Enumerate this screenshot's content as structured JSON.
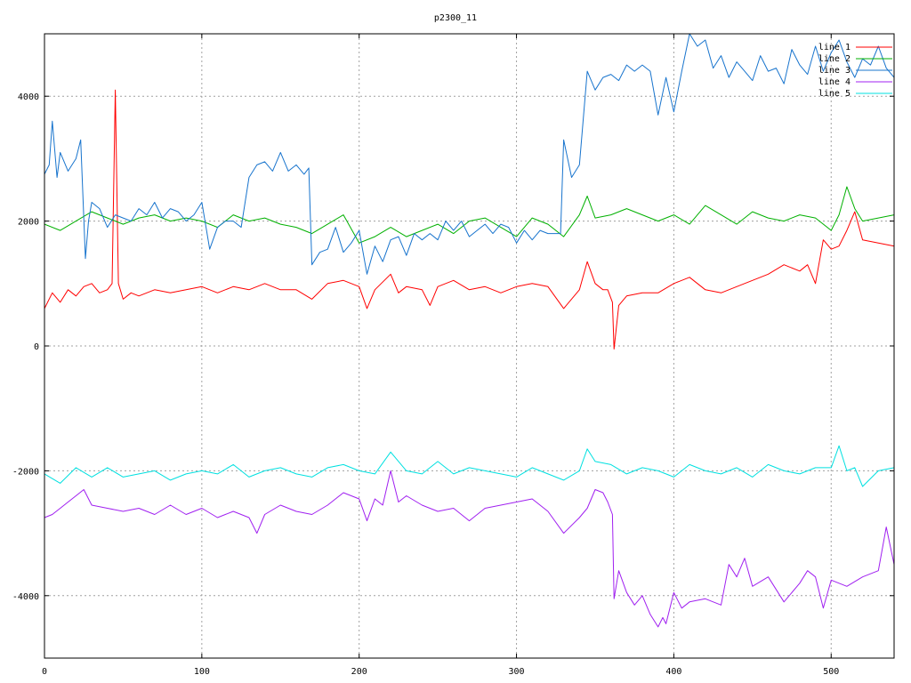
{
  "chart_data": {
    "type": "line",
    "title": "p2300_11",
    "xlabel": "",
    "ylabel": "",
    "xlim": [
      0,
      540
    ],
    "ylim": [
      -5000,
      5000
    ],
    "x_ticks": [
      0,
      100,
      200,
      300,
      400,
      500
    ],
    "y_ticks": [
      -4000,
      -2000,
      0,
      2000,
      4000
    ],
    "grid": true,
    "legend_position": "top-right",
    "series": [
      {
        "name": "line 1",
        "color": "#ff0000",
        "x": [
          0,
          5,
          10,
          15,
          20,
          25,
          30,
          35,
          40,
          43,
          45,
          47,
          50,
          55,
          60,
          70,
          80,
          90,
          100,
          110,
          120,
          130,
          140,
          150,
          160,
          170,
          180,
          190,
          200,
          205,
          210,
          220,
          225,
          230,
          240,
          245,
          250,
          260,
          270,
          280,
          290,
          300,
          310,
          320,
          330,
          340,
          345,
          350,
          355,
          358,
          361,
          362,
          365,
          370,
          380,
          390,
          400,
          410,
          420,
          430,
          440,
          450,
          460,
          470,
          480,
          485,
          490,
          495,
          500,
          505,
          510,
          515,
          520,
          530,
          540
        ],
        "y": [
          600,
          850,
          700,
          900,
          800,
          950,
          1000,
          850,
          900,
          1000,
          4100,
          1000,
          750,
          850,
          800,
          900,
          850,
          900,
          950,
          850,
          950,
          900,
          1000,
          900,
          900,
          750,
          1000,
          1050,
          950,
          600,
          900,
          1150,
          850,
          950,
          900,
          650,
          950,
          1050,
          900,
          950,
          850,
          950,
          1000,
          950,
          600,
          900,
          1350,
          1000,
          900,
          900,
          700,
          -50,
          650,
          800,
          850,
          850,
          1000,
          1100,
          900,
          850,
          950,
          1050,
          1150,
          1300,
          1200,
          1300,
          1000,
          1700,
          1550,
          1600,
          1850,
          2150,
          1700,
          1650,
          1600
        ]
      },
      {
        "name": "line 2",
        "color": "#00b000",
        "x": [
          0,
          10,
          20,
          30,
          40,
          50,
          60,
          70,
          80,
          90,
          100,
          110,
          120,
          130,
          140,
          150,
          160,
          170,
          180,
          190,
          200,
          210,
          220,
          230,
          240,
          250,
          260,
          270,
          280,
          290,
          300,
          310,
          320,
          330,
          340,
          345,
          350,
          360,
          370,
          380,
          390,
          400,
          410,
          420,
          430,
          440,
          450,
          460,
          470,
          480,
          490,
          500,
          505,
          510,
          515,
          520,
          530,
          540
        ],
        "y": [
          1950,
          1850,
          2000,
          2150,
          2050,
          1950,
          2050,
          2100,
          2000,
          2050,
          2000,
          1900,
          2100,
          2000,
          2050,
          1950,
          1900,
          1800,
          1950,
          2100,
          1650,
          1750,
          1900,
          1750,
          1850,
          1950,
          1800,
          2000,
          2050,
          1900,
          1750,
          2050,
          1950,
          1750,
          2100,
          2400,
          2050,
          2100,
          2200,
          2100,
          2000,
          2100,
          1950,
          2250,
          2100,
          1950,
          2150,
          2050,
          2000,
          2100,
          2050,
          1850,
          2100,
          2550,
          2200,
          2000,
          2050,
          2100
        ]
      },
      {
        "name": "line 3",
        "color": "#1874cd",
        "x": [
          0,
          3,
          5,
          8,
          10,
          15,
          20,
          23,
          26,
          28,
          30,
          35,
          40,
          45,
          50,
          55,
          60,
          65,
          70,
          75,
          80,
          85,
          90,
          95,
          100,
          105,
          110,
          115,
          120,
          125,
          130,
          135,
          140,
          145,
          150,
          155,
          160,
          165,
          168,
          170,
          175,
          180,
          185,
          190,
          195,
          200,
          205,
          210,
          215,
          220,
          225,
          230,
          235,
          240,
          245,
          250,
          255,
          260,
          265,
          270,
          275,
          280,
          285,
          290,
          295,
          300,
          305,
          310,
          315,
          320,
          325,
          328,
          330,
          335,
          340,
          345,
          350,
          355,
          360,
          365,
          370,
          375,
          380,
          385,
          390,
          395,
          400,
          405,
          410,
          415,
          420,
          425,
          430,
          435,
          440,
          445,
          450,
          455,
          460,
          465,
          470,
          475,
          480,
          485,
          490,
          495,
          500,
          505,
          510,
          515,
          520,
          525,
          530,
          535,
          540
        ],
        "y": [
          2750,
          2900,
          3600,
          2700,
          3100,
          2800,
          3000,
          3300,
          1400,
          2000,
          2300,
          2200,
          1900,
          2100,
          2050,
          2000,
          2200,
          2100,
          2300,
          2050,
          2200,
          2150,
          2000,
          2100,
          2300,
          1550,
          1900,
          2000,
          2000,
          1900,
          2700,
          2900,
          2950,
          2800,
          3100,
          2800,
          2900,
          2750,
          2850,
          1300,
          1500,
          1550,
          1900,
          1500,
          1650,
          1850,
          1150,
          1600,
          1350,
          1700,
          1750,
          1450,
          1800,
          1700,
          1800,
          1700,
          2000,
          1850,
          2000,
          1750,
          1850,
          1950,
          1800,
          1950,
          1900,
          1650,
          1850,
          1700,
          1850,
          1800,
          1800,
          1800,
          3300,
          2700,
          2900,
          4400,
          4100,
          4300,
          4350,
          4250,
          4500,
          4400,
          4500,
          4400,
          3700,
          4300,
          3750,
          4400,
          5000,
          4800,
          4900,
          4450,
          4650,
          4300,
          4550,
          4400,
          4250,
          4650,
          4400,
          4450,
          4200,
          4750,
          4500,
          4350,
          4800,
          4400,
          4700,
          4900,
          4550,
          4300,
          4600,
          4500,
          4800,
          4450,
          4300
        ]
      },
      {
        "name": "line 4",
        "color": "#a020f0",
        "x": [
          0,
          5,
          10,
          15,
          20,
          25,
          30,
          40,
          50,
          60,
          70,
          80,
          90,
          100,
          110,
          120,
          130,
          135,
          140,
          150,
          160,
          170,
          180,
          190,
          200,
          205,
          210,
          215,
          220,
          225,
          230,
          240,
          250,
          260,
          270,
          280,
          290,
          300,
          310,
          320,
          330,
          340,
          345,
          350,
          355,
          358,
          361,
          362,
          365,
          370,
          375,
          380,
          385,
          390,
          393,
          395,
          400,
          405,
          410,
          420,
          430,
          435,
          440,
          445,
          450,
          460,
          470,
          480,
          485,
          490,
          495,
          500,
          510,
          520,
          530,
          535,
          540
        ],
        "y": [
          -2750,
          -2700,
          -2600,
          -2500,
          -2400,
          -2300,
          -2550,
          -2600,
          -2650,
          -2600,
          -2700,
          -2550,
          -2700,
          -2600,
          -2750,
          -2650,
          -2750,
          -3000,
          -2700,
          -2550,
          -2650,
          -2700,
          -2550,
          -2350,
          -2450,
          -2800,
          -2450,
          -2550,
          -2000,
          -2500,
          -2400,
          -2550,
          -2650,
          -2600,
          -2800,
          -2600,
          -2550,
          -2500,
          -2450,
          -2650,
          -3000,
          -2750,
          -2600,
          -2300,
          -2350,
          -2500,
          -2700,
          -4050,
          -3600,
          -3950,
          -4150,
          -4000,
          -4300,
          -4500,
          -4350,
          -4450,
          -3950,
          -4200,
          -4100,
          -4050,
          -4150,
          -3500,
          -3700,
          -3400,
          -3850,
          -3700,
          -4100,
          -3800,
          -3600,
          -3700,
          -4200,
          -3750,
          -3850,
          -3700,
          -3600,
          -2900,
          -3500
        ]
      },
      {
        "name": "line 5",
        "color": "#00e0e0",
        "x": [
          0,
          10,
          20,
          30,
          40,
          50,
          60,
          70,
          80,
          90,
          100,
          110,
          120,
          130,
          140,
          150,
          160,
          170,
          180,
          190,
          200,
          210,
          220,
          230,
          240,
          250,
          260,
          270,
          280,
          290,
          300,
          310,
          320,
          330,
          340,
          345,
          350,
          360,
          370,
          380,
          390,
          400,
          410,
          420,
          430,
          440,
          450,
          460,
          470,
          480,
          490,
          500,
          505,
          510,
          515,
          520,
          530,
          540
        ],
        "y": [
          -2050,
          -2200,
          -1950,
          -2100,
          -1950,
          -2100,
          -2050,
          -2000,
          -2150,
          -2050,
          -2000,
          -2050,
          -1900,
          -2100,
          -2000,
          -1950,
          -2050,
          -2100,
          -1950,
          -1900,
          -2000,
          -2050,
          -1700,
          -2000,
          -2050,
          -1850,
          -2050,
          -1950,
          -2000,
          -2050,
          -2100,
          -1950,
          -2050,
          -2150,
          -2000,
          -1650,
          -1850,
          -1900,
          -2050,
          -1950,
          -2000,
          -2100,
          -1900,
          -2000,
          -2050,
          -1950,
          -2100,
          -1900,
          -2000,
          -2050,
          -1950,
          -1950,
          -1600,
          -2000,
          -1950,
          -2250,
          -2000,
          -1950
        ]
      }
    ]
  }
}
